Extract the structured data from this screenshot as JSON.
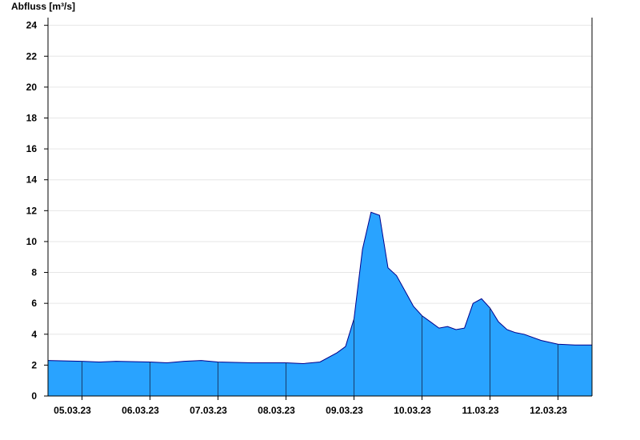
{
  "chart_data": {
    "type": "area",
    "title": "",
    "ylabel": "Abfluss [m³/s]",
    "xlabel": "",
    "ylim": [
      0,
      24.5
    ],
    "yticks": [
      0,
      2,
      4,
      6,
      8,
      10,
      12,
      14,
      16,
      18,
      20,
      22,
      24
    ],
    "grid": true,
    "x_start": "2023-03-04 12:00",
    "x_end": "2023-03-12 12:00",
    "day_labels": [
      "05.03.23",
      "06.03.23",
      "07.03.23",
      "08.03.23",
      "09.03.23",
      "10.03.23",
      "11.03.23",
      "12.03.23"
    ],
    "fill_color": "#29a3ff",
    "line_color": "#00008b",
    "series": [
      {
        "x": [
          "2023-03-04 12:00",
          "2023-03-05 00:00",
          "2023-03-05 06:00",
          "2023-03-05 12:00",
          "2023-03-06 00:00",
          "2023-03-06 06:00",
          "2023-03-06 12:00",
          "2023-03-06 18:00",
          "2023-03-07 00:00",
          "2023-03-07 12:00",
          "2023-03-08 00:00",
          "2023-03-08 06:00",
          "2023-03-08 12:00",
          "2023-03-08 18:00",
          "2023-03-08 21:00",
          "2023-03-09 00:00",
          "2023-03-09 03:00",
          "2023-03-09 06:00",
          "2023-03-09 09:00",
          "2023-03-09 12:00",
          "2023-03-09 15:00",
          "2023-03-09 18:00",
          "2023-03-09 21:00",
          "2023-03-10 00:00",
          "2023-03-10 03:00",
          "2023-03-10 06:00",
          "2023-03-10 09:00",
          "2023-03-10 12:00",
          "2023-03-10 15:00",
          "2023-03-10 18:00",
          "2023-03-10 21:00",
          "2023-03-11 00:00",
          "2023-03-11 03:00",
          "2023-03-11 06:00",
          "2023-03-11 09:00",
          "2023-03-11 12:00",
          "2023-03-11 18:00",
          "2023-03-12 00:00",
          "2023-03-12 06:00",
          "2023-03-12 12:00"
        ],
        "y": [
          2.3,
          2.25,
          2.2,
          2.25,
          2.2,
          2.15,
          2.25,
          2.3,
          2.2,
          2.15,
          2.15,
          2.1,
          2.2,
          2.8,
          3.2,
          5.0,
          9.5,
          11.9,
          11.7,
          8.3,
          7.8,
          6.8,
          5.8,
          5.2,
          4.8,
          4.4,
          4.5,
          4.3,
          4.4,
          6.0,
          6.3,
          5.7,
          4.8,
          4.3,
          4.1,
          4.0,
          3.6,
          3.35,
          3.3,
          3.3
        ]
      }
    ]
  }
}
